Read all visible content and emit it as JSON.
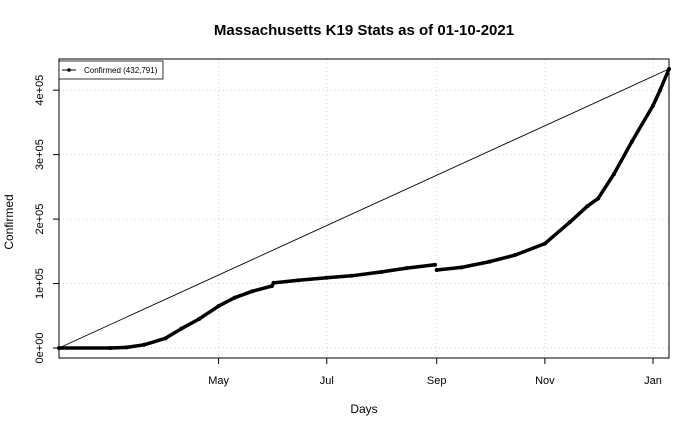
{
  "chart_data": {
    "type": "line",
    "title": "Massachusetts K19 Stats as of 01-10-2021",
    "xlabel": "Days",
    "ylabel": "Confirmed",
    "x_ticks": [
      {
        "date": "2020-05-01",
        "label": "May"
      },
      {
        "date": "2020-07-01",
        "label": "Jul"
      },
      {
        "date": "2020-09-01",
        "label": "Sep"
      },
      {
        "date": "2020-11-01",
        "label": "Nov"
      },
      {
        "date": "2021-01-01",
        "label": "Jan"
      }
    ],
    "y_ticks": [
      {
        "value": 0,
        "label": "0e+00"
      },
      {
        "value": 100000,
        "label": "1e+05"
      },
      {
        "value": 200000,
        "label": "2e+05"
      },
      {
        "value": 300000,
        "label": "3e+05"
      },
      {
        "value": 400000,
        "label": "4e+05"
      }
    ],
    "xlim": [
      "2020-02-01",
      "2021-01-10"
    ],
    "ylim": [
      0,
      432791
    ],
    "grid": true,
    "legend": {
      "placement": "top-left",
      "entries": [
        "Confirmed (432,791)"
      ]
    },
    "series": [
      {
        "name": "Confirmed (432,791)",
        "style": "points-line",
        "color": "#000000",
        "points": [
          {
            "x": "2020-02-01",
            "y": 0
          },
          {
            "x": "2020-03-01",
            "y": 0
          },
          {
            "x": "2020-03-10",
            "y": 1000
          },
          {
            "x": "2020-03-20",
            "y": 5000
          },
          {
            "x": "2020-04-01",
            "y": 15000
          },
          {
            "x": "2020-04-10",
            "y": 30000
          },
          {
            "x": "2020-04-20",
            "y": 45000
          },
          {
            "x": "2020-05-01",
            "y": 65000
          },
          {
            "x": "2020-05-10",
            "y": 78000
          },
          {
            "x": "2020-05-20",
            "y": 88000
          },
          {
            "x": "2020-05-31",
            "y": 96000
          },
          {
            "x": "2020-06-01",
            "y": 101000
          },
          {
            "x": "2020-06-15",
            "y": 105000
          },
          {
            "x": "2020-07-01",
            "y": 109000
          },
          {
            "x": "2020-07-15",
            "y": 112000
          },
          {
            "x": "2020-08-01",
            "y": 118000
          },
          {
            "x": "2020-08-15",
            "y": 124000
          },
          {
            "x": "2020-08-31",
            "y": 129000
          },
          {
            "x": "2020-09-01",
            "y": 121000
          },
          {
            "x": "2020-09-15",
            "y": 125000
          },
          {
            "x": "2020-10-01",
            "y": 134000
          },
          {
            "x": "2020-10-15",
            "y": 144000
          },
          {
            "x": "2020-11-01",
            "y": 162000
          },
          {
            "x": "2020-11-15",
            "y": 195000
          },
          {
            "x": "2020-11-25",
            "y": 220000
          },
          {
            "x": "2020-12-01",
            "y": 232000
          },
          {
            "x": "2020-12-10",
            "y": 270000
          },
          {
            "x": "2020-12-20",
            "y": 320000
          },
          {
            "x": "2021-01-01",
            "y": 376000
          },
          {
            "x": "2021-01-05",
            "y": 400000
          },
          {
            "x": "2021-01-10",
            "y": 432791
          }
        ]
      },
      {
        "style": "line",
        "color": "#000000",
        "points": [
          {
            "x": "2020-02-01",
            "y": 0
          },
          {
            "x": "2021-01-10",
            "y": 432791
          }
        ]
      }
    ]
  }
}
